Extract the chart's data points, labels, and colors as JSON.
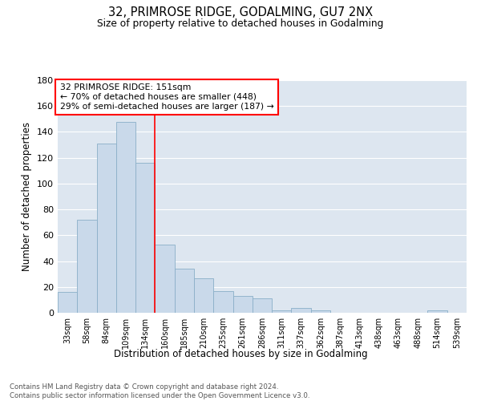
{
  "title": "32, PRIMROSE RIDGE, GODALMING, GU7 2NX",
  "subtitle": "Size of property relative to detached houses in Godalming",
  "xlabel": "Distribution of detached houses by size in Godalming",
  "ylabel": "Number of detached properties",
  "bar_color": "#c9d9ea",
  "bar_edge_color": "#8aafc8",
  "bg_color": "#dde6f0",
  "categories": [
    "33sqm",
    "58sqm",
    "84sqm",
    "109sqm",
    "134sqm",
    "160sqm",
    "185sqm",
    "210sqm",
    "235sqm",
    "261sqm",
    "286sqm",
    "311sqm",
    "337sqm",
    "362sqm",
    "387sqm",
    "413sqm",
    "438sqm",
    "463sqm",
    "488sqm",
    "514sqm",
    "539sqm"
  ],
  "values": [
    16,
    72,
    131,
    148,
    116,
    53,
    34,
    27,
    17,
    13,
    11,
    2,
    4,
    2,
    0,
    0,
    0,
    0,
    0,
    2,
    0
  ],
  "red_line_x": 4.5,
  "property_size": "151sqm",
  "pct_smaller": "70%",
  "n_smaller": 448,
  "pct_larger_semi": "29%",
  "n_larger_semi": 187,
  "ylim": [
    0,
    180
  ],
  "yticks": [
    0,
    20,
    40,
    60,
    80,
    100,
    120,
    140,
    160,
    180
  ],
  "footnote": "Contains HM Land Registry data © Crown copyright and database right 2024.\nContains public sector information licensed under the Open Government Licence v3.0."
}
